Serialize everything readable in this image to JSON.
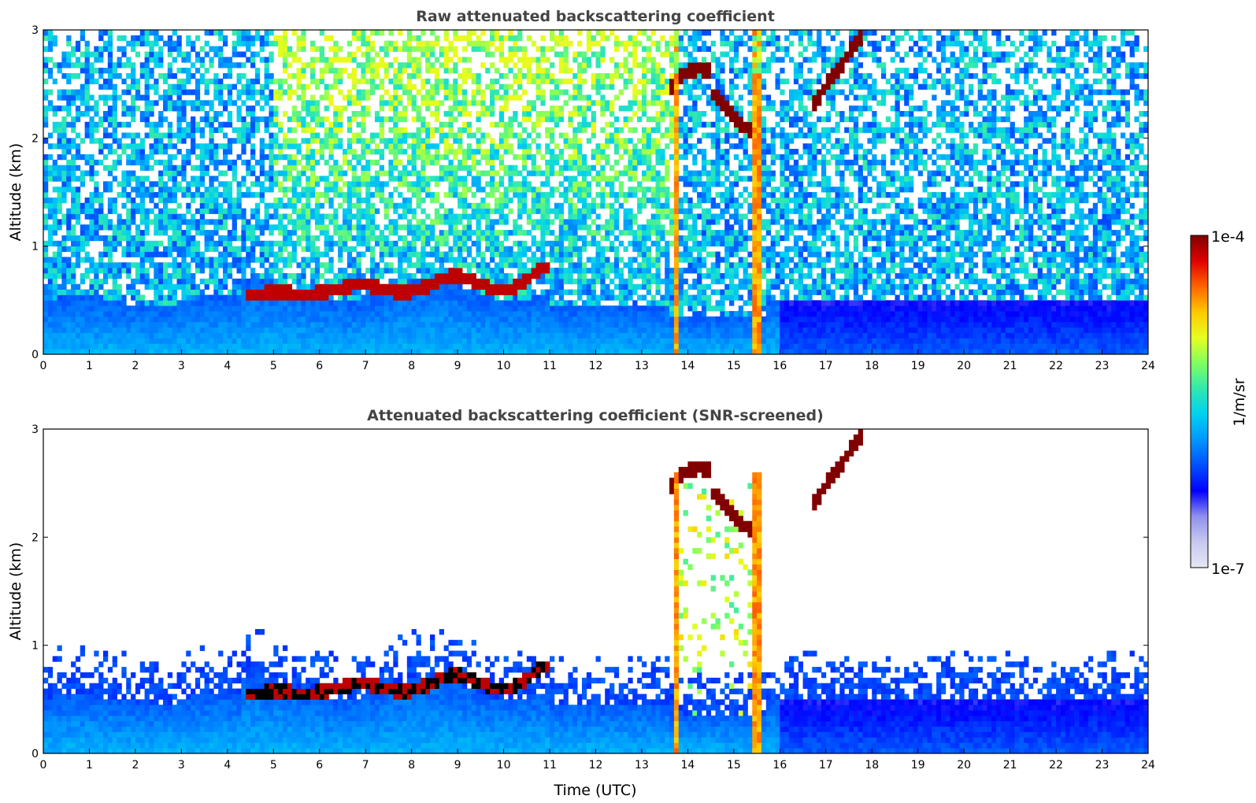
{
  "chart_data": [
    {
      "type": "heatmap",
      "title": "Raw attenuated backscattering coefficient",
      "xlabel": "",
      "ylabel": "Altitude (km)",
      "xlim": [
        0,
        24
      ],
      "ylim": [
        0,
        3
      ],
      "xticks": [
        "0",
        "1",
        "2",
        "3",
        "4",
        "5",
        "6",
        "7",
        "8",
        "9",
        "10",
        "11",
        "12",
        "13",
        "14",
        "15",
        "16",
        "17",
        "18",
        "19",
        "20",
        "21",
        "22",
        "23",
        "24"
      ],
      "yticks": [
        "0",
        "1",
        "2",
        "3"
      ],
      "features": {
        "boundary_layer_top_km": "approx. 0.5–0.7 (0.5 at 0–4 UTC, 0.6–0.8 at 4.5–10.5 UTC, 0.5 after 16 UTC)",
        "cloud_layer_km": "approx. 0.5–0.9 between 4.5 and 11 UTC",
        "high_cloud_km": "approx. 2.1–3.0 between 13.5 and 17.8 UTC",
        "strong_signal_columns_utc": [
          13.7,
          15.5
        ]
      }
    },
    {
      "type": "heatmap",
      "title": "Attenuated backscattering coefficient (SNR-screened)",
      "xlabel": "Time (UTC)",
      "ylabel": "Altitude (km)",
      "xlim": [
        0,
        24
      ],
      "ylim": [
        0,
        3
      ],
      "xticks": [
        "0",
        "1",
        "2",
        "3",
        "4",
        "5",
        "6",
        "7",
        "8",
        "9",
        "10",
        "11",
        "12",
        "13",
        "14",
        "15",
        "16",
        "17",
        "18",
        "19",
        "20",
        "21",
        "22",
        "23",
        "24"
      ],
      "yticks": [
        "0",
        "1",
        "2",
        "3"
      ]
    }
  ],
  "colorbar": {
    "label": "1/m/sr",
    "max_label": "1e-4",
    "min_label": "1e-7",
    "scale": "log",
    "range": [
      1e-07,
      0.0001
    ],
    "colors": [
      "#e6e6f5",
      "#c8c8f0",
      "#9090ee",
      "#0000ff",
      "#0050ff",
      "#0096ff",
      "#00d2f0",
      "#30e8b0",
      "#80ff60",
      "#e6ff20",
      "#ffc800",
      "#ff6400",
      "#e00000",
      "#800000"
    ]
  }
}
